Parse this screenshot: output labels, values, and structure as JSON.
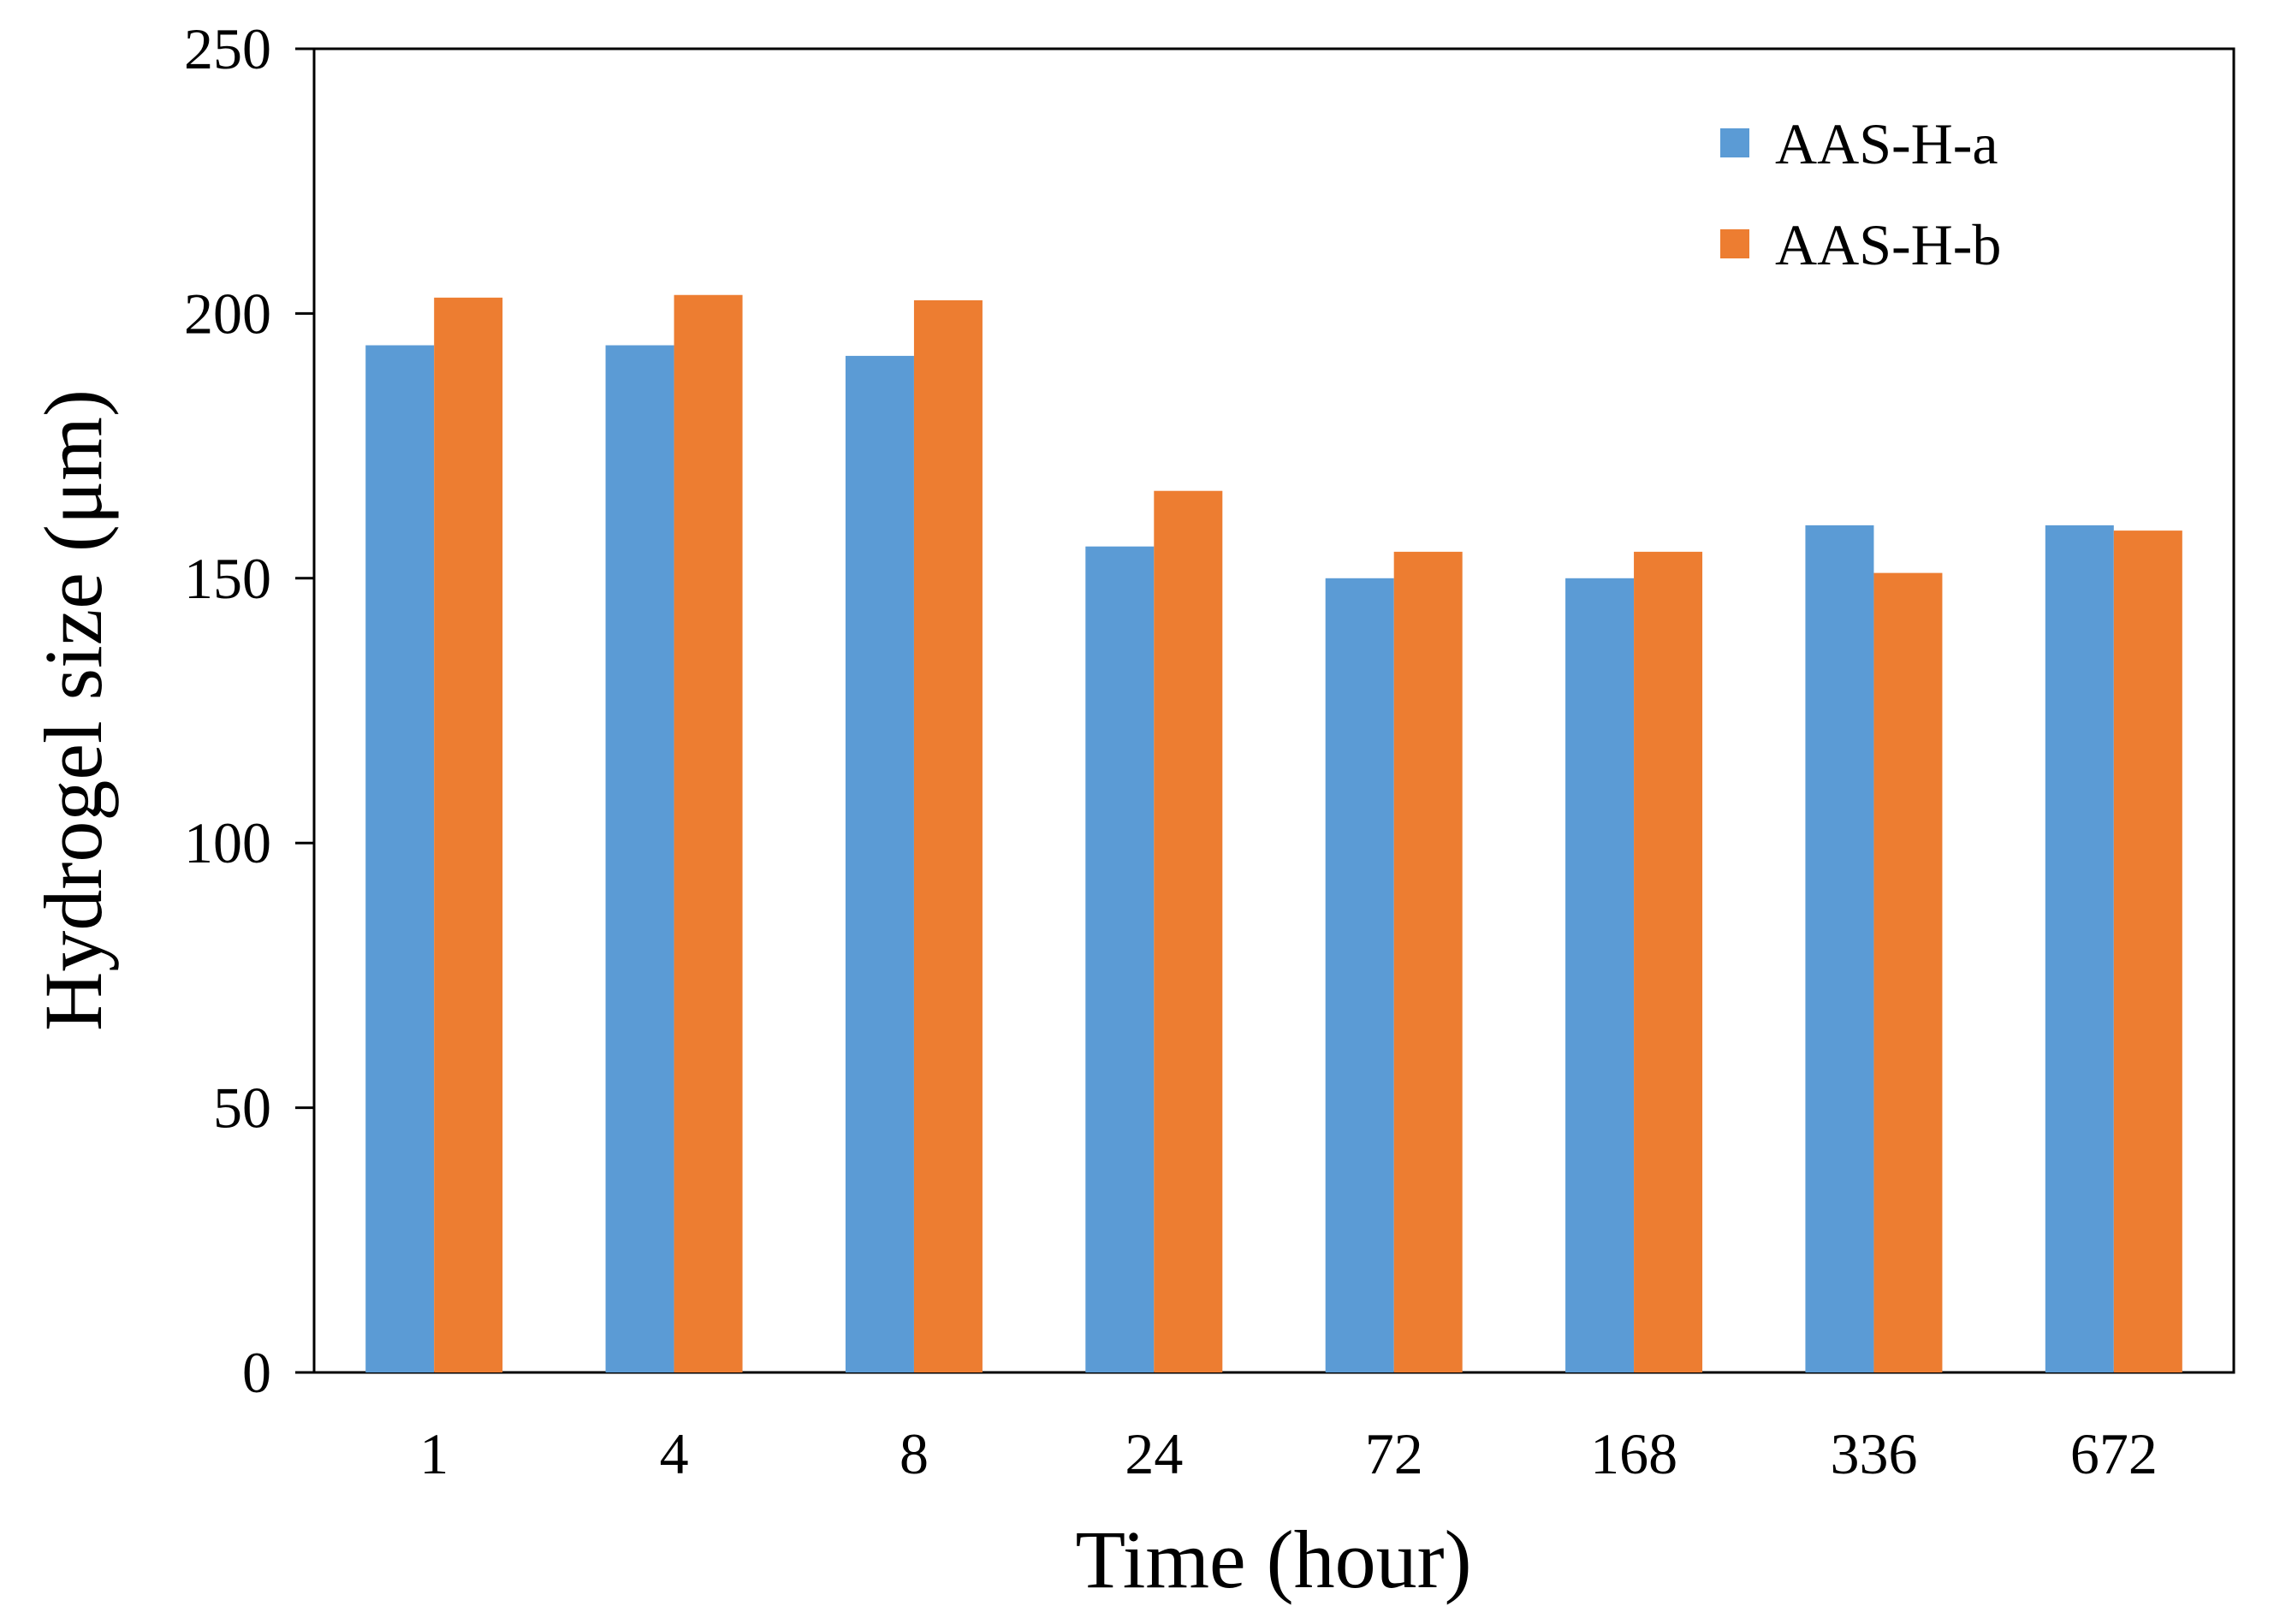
{
  "chart_data": {
    "type": "bar",
    "title": "",
    "xlabel": "Time (hour)",
    "ylabel": "Hydrogel size (μm)",
    "categories": [
      "1",
      "4",
      "8",
      "24",
      "72",
      "168",
      "336",
      "672"
    ],
    "series": [
      {
        "name": "AAS-H-a",
        "color": "#5b9bd5",
        "values": [
          194,
          194,
          192,
          156,
          150,
          150,
          160,
          160
        ]
      },
      {
        "name": "AAS-H-b",
        "color": "#ed7d31",
        "values": [
          203,
          203.5,
          202.5,
          166.5,
          155,
          155,
          151,
          159
        ]
      }
    ],
    "ylim": [
      0,
      250
    ],
    "yticks": [
      "0",
      "50",
      "100",
      "150",
      "200",
      "250"
    ],
    "grid": false,
    "legend_position": "top-right"
  }
}
